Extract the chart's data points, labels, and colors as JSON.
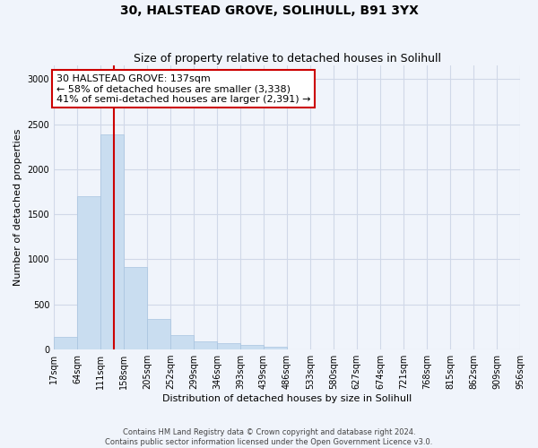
{
  "title": "30, HALSTEAD GROVE, SOLIHULL, B91 3YX",
  "subtitle": "Size of property relative to detached houses in Solihull",
  "xlabel": "Distribution of detached houses by size in Solihull",
  "ylabel": "Number of detached properties",
  "bar_color": "#c9ddf0",
  "bar_edge_color": "#a8c4e0",
  "grid_color": "#d0d8e8",
  "background_color": "#f0f4fb",
  "vline_color": "#cc0000",
  "vline_x": 137,
  "annotation_line1": "30 HALSTEAD GROVE: 137sqm",
  "annotation_line2": "← 58% of detached houses are smaller (3,338)",
  "annotation_line3": "41% of semi-detached houses are larger (2,391) →",
  "annotation_box_color": "#ffffff",
  "annotation_border_color": "#cc0000",
  "bin_edges": [
    17,
    64,
    111,
    158,
    205,
    252,
    299,
    346,
    393,
    439,
    486,
    533,
    580,
    627,
    674,
    721,
    768,
    815,
    862,
    909,
    956
  ],
  "bin_labels": [
    "17sqm",
    "64sqm",
    "111sqm",
    "158sqm",
    "205sqm",
    "252sqm",
    "299sqm",
    "346sqm",
    "393sqm",
    "439sqm",
    "486sqm",
    "533sqm",
    "580sqm",
    "627sqm",
    "674sqm",
    "721sqm",
    "768sqm",
    "815sqm",
    "862sqm",
    "909sqm",
    "956sqm"
  ],
  "bar_heights": [
    140,
    1700,
    2390,
    920,
    340,
    160,
    90,
    75,
    50,
    30,
    5,
    3,
    2,
    2,
    2,
    1,
    1,
    1,
    1,
    1
  ],
  "ylim": [
    0,
    3150
  ],
  "yticks": [
    0,
    500,
    1000,
    1500,
    2000,
    2500,
    3000
  ],
  "footer_text": "Contains HM Land Registry data © Crown copyright and database right 2024.\nContains public sector information licensed under the Open Government Licence v3.0.",
  "title_fontsize": 10,
  "subtitle_fontsize": 9,
  "axis_label_fontsize": 8,
  "tick_fontsize": 7,
  "footer_fontsize": 6,
  "annot_fontsize": 8
}
